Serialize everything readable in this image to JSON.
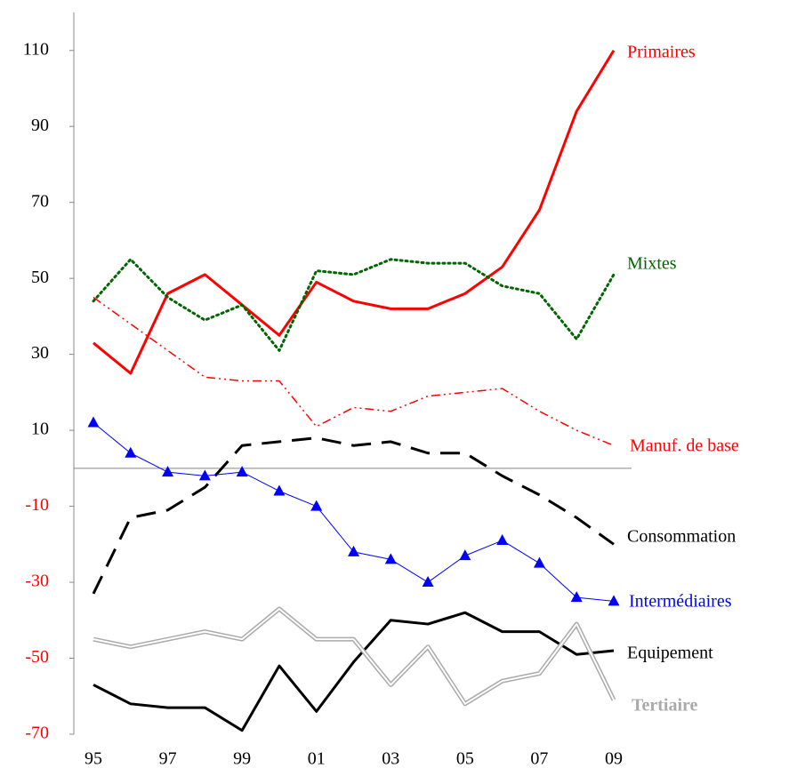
{
  "chart_data": {
    "type": "line",
    "categories": [
      "95",
      null,
      "97",
      null,
      "99",
      null,
      "01",
      null,
      "03",
      null,
      "05",
      null,
      "07",
      null,
      "09"
    ],
    "ylim": [
      -70,
      120
    ],
    "yticks": [
      -70,
      -50,
      -30,
      -10,
      10,
      30,
      50,
      70,
      90,
      110
    ],
    "negative_tick_color": "#ff0000",
    "series": [
      {
        "name": "Primaires",
        "color": "#ff0000",
        "style": "solid",
        "values": [
          33,
          25,
          46,
          51,
          43,
          35,
          49,
          44,
          42,
          42,
          46,
          53,
          68,
          94,
          110
        ]
      },
      {
        "name": "Mixtes",
        "color": "#006600",
        "style": "dotted",
        "values": [
          44,
          55,
          45,
          39,
          43,
          31,
          52,
          51,
          55,
          54,
          54,
          48,
          46,
          34,
          51
        ]
      },
      {
        "name": "Manuf. de base",
        "color": "#ff0000",
        "style": "dashdot",
        "values": [
          45,
          38,
          31,
          24,
          23,
          23,
          11,
          16,
          15,
          19,
          20,
          21,
          15,
          10,
          6
        ]
      },
      {
        "name": "Consommation",
        "color": "#000000",
        "style": "dashed",
        "values": [
          -33,
          -13,
          -11,
          -5,
          6,
          7,
          8,
          6,
          7,
          4,
          4,
          -2,
          -7,
          -13,
          -20
        ]
      },
      {
        "name": "Intermédiaires",
        "color": "#0000ff",
        "style": "triangle",
        "values": [
          12,
          4,
          -1,
          -2,
          -1,
          -6,
          -10,
          -22,
          -24,
          -30,
          -23,
          -19,
          -25,
          -34,
          -35
        ]
      },
      {
        "name": "Equipement",
        "color": "#000000",
        "style": "solid",
        "values": [
          -57,
          -62,
          -63,
          -63,
          -69,
          -52,
          -64,
          -51,
          -40,
          -41,
          -38,
          -43,
          -43,
          -49,
          -48
        ]
      },
      {
        "name": "Tertiaire",
        "color": "#aaaaaa",
        "style": "double",
        "values": [
          -45,
          -47,
          -45,
          -43,
          -45,
          -37,
          -45,
          -45,
          -57,
          -47,
          -62,
          -56,
          -54,
          -41,
          -61
        ]
      }
    ]
  }
}
